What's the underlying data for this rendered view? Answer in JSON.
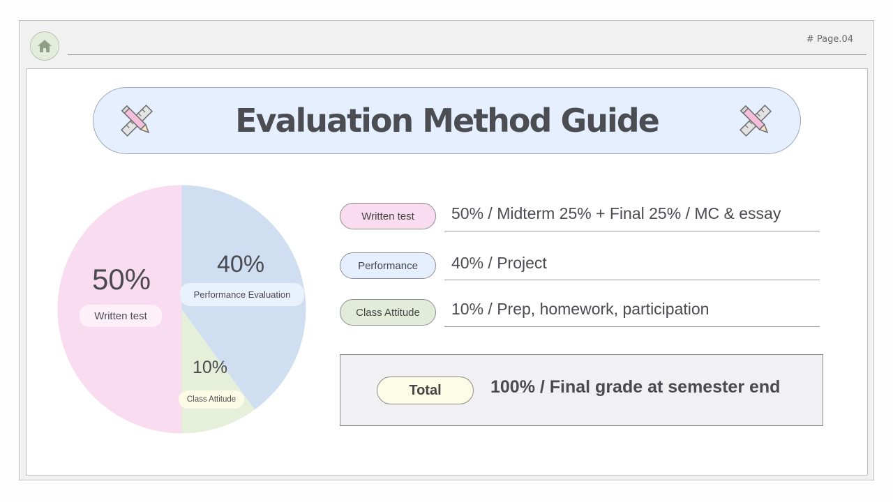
{
  "header": {
    "page_label": "# Page.04",
    "home_icon": "home-icon"
  },
  "title": {
    "text": "Evaluation Method Guide",
    "decor_icon": "pencil-ruler-icon"
  },
  "chart_data": {
    "type": "pie",
    "slices": [
      {
        "label": "Written test",
        "value_label": "50%",
        "value": 50,
        "color": "#f9dcef"
      },
      {
        "label": "Performance Evaluation",
        "value_label": "40%",
        "value": 40,
        "color": "#cfdff1"
      },
      {
        "label": "Class Attitude",
        "value_label": "10%",
        "value": 10,
        "color": "#e5efd9"
      }
    ]
  },
  "rows": [
    {
      "label": "Written test",
      "detail": "50% / Midterm 25% + Final 25% / MC & essay",
      "color": "#f9dcef"
    },
    {
      "label": "Performance",
      "detail": "40% / Project",
      "color": "#e5efff"
    },
    {
      "label": "Class Attitude",
      "detail": "10% / Prep, homework, participation",
      "color": "#e2ecd9"
    }
  ],
  "total": {
    "label": "Total",
    "detail": "100% / Final grade at semester end",
    "color": "#fdfce6"
  }
}
